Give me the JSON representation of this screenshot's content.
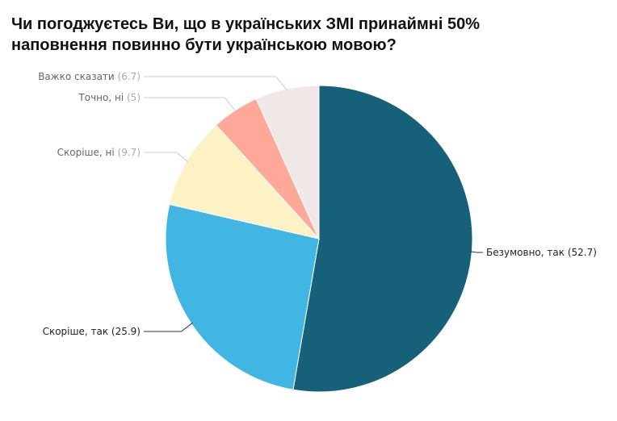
{
  "chart_data": {
    "type": "pie",
    "title": [
      "Чи погоджуєтесь Ви, що в українських ЗМІ принаймні 50%",
      "наповнення повинно бути українською мовою?"
    ],
    "categories": [
      "Безумовно, так",
      "Скоріше, так",
      "Скоріше, ні",
      "Точно, ні",
      "Важко сказати"
    ],
    "values": [
      52.7,
      25.9,
      9.7,
      5,
      6.7
    ],
    "value_labels": [
      "(52.7)",
      "(25.9)",
      "(9.7)",
      "(5)",
      "(6.7)"
    ],
    "colors": [
      "#17607a",
      "#42b6e3",
      "#fdf2c6",
      "#fea89a",
      "#efe8e6"
    ]
  }
}
